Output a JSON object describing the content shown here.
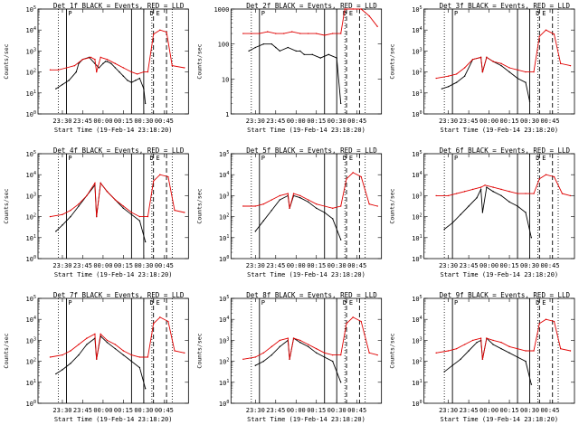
{
  "figure": {
    "x_ticks": [
      "23:30",
      "23:45",
      "00:00",
      "00:15",
      "00:30",
      "00:45"
    ],
    "xlabel": "Start Time (19-Feb-14 23:18:20)",
    "ylabel": "Counts/sec",
    "legend_text": "BLACK = Events, RED = LLD",
    "flags": [
      "P",
      "D",
      "E"
    ],
    "colors": {
      "events": "#000000",
      "lld": "#e00000"
    }
  },
  "chart_data": [
    {
      "panel": "Det 1f",
      "type": "line",
      "ylim_log": [
        0,
        5
      ],
      "y_ticks": [
        "10^0",
        "10^1",
        "10^2",
        "10^3",
        "10^4",
        "10^5"
      ],
      "lines": {
        "solid": [
          23.55,
          0.35,
          0.5
        ],
        "dotted": [
          23.45,
          0.85,
          0.6
        ],
        "dashed": [
          0.62,
          0.78
        ]
      },
      "series": [
        {
          "name": "BLACK = Events",
          "x": [
            23.42,
            23.5,
            23.58,
            23.67,
            23.7,
            23.75,
            23.83,
            23.9,
            23.95,
            24.0,
            24.03,
            24.05,
            24.1,
            24.15,
            24.2,
            24.25,
            24.3,
            24.35,
            24.4,
            24.45,
            24.5,
            24.52
          ],
          "y": [
            1.2,
            1.4,
            1.6,
            2.0,
            2.4,
            2.6,
            2.7,
            2.4,
            2.2,
            2.4,
            2.5,
            2.5,
            2.4,
            2.2,
            2.0,
            1.8,
            1.6,
            1.5,
            1.6,
            1.7,
            1.2,
            0.5
          ]
        },
        {
          "name": "RED = LLD",
          "x": [
            23.35,
            23.45,
            23.55,
            23.65,
            23.75,
            23.85,
            23.9,
            23.92,
            23.97,
            24.05,
            24.15,
            24.25,
            24.35,
            24.42,
            24.5,
            24.55,
            24.62,
            24.7,
            24.78,
            24.85,
            25.0
          ],
          "y": [
            2.1,
            2.1,
            2.2,
            2.3,
            2.6,
            2.7,
            2.6,
            2.0,
            2.7,
            2.6,
            2.4,
            2.2,
            2.0,
            1.9,
            2.0,
            2.0,
            3.8,
            4.0,
            3.9,
            2.3,
            2.2
          ]
        }
      ]
    },
    {
      "panel": "Det 2f",
      "type": "line",
      "ylim_log": [
        0,
        3
      ],
      "y_ticks": [
        "1",
        "10",
        "100",
        "1000"
      ],
      "lines": {
        "solid": [
          23.55,
          0.35,
          0.5
        ],
        "dotted": [
          23.45,
          0.85,
          0.6
        ],
        "dashed": [
          0.62,
          0.78
        ]
      },
      "series": [
        {
          "name": "BLACK = Events",
          "x": [
            23.42,
            23.5,
            23.6,
            23.7,
            23.75,
            23.8,
            23.9,
            24.0,
            24.05,
            24.1,
            24.2,
            24.3,
            24.4,
            24.5,
            24.55
          ],
          "y": [
            1.8,
            1.9,
            2.0,
            2.0,
            1.9,
            1.8,
            1.9,
            1.8,
            1.8,
            1.7,
            1.7,
            1.6,
            1.7,
            1.6,
            0.3
          ]
        },
        {
          "name": "RED = LLD",
          "x": [
            23.35,
            23.45,
            23.55,
            23.65,
            23.75,
            23.85,
            23.95,
            24.05,
            24.15,
            24.25,
            24.35,
            24.45,
            24.55,
            24.6,
            24.7,
            24.8,
            24.9,
            25.0
          ],
          "y": [
            2.3,
            2.3,
            2.3,
            2.35,
            2.3,
            2.3,
            2.35,
            2.3,
            2.3,
            2.3,
            2.25,
            2.3,
            2.3,
            3.0,
            3.1,
            3.0,
            2.8,
            2.5
          ]
        }
      ]
    },
    {
      "panel": "Det 3f",
      "type": "line",
      "ylim_log": [
        0,
        5
      ],
      "y_ticks": [
        "10^0",
        "10^1",
        "10^2",
        "10^3",
        "10^4",
        "10^5"
      ],
      "lines": {
        "solid": [
          23.55,
          0.35,
          0.5
        ],
        "dotted": [
          23.45,
          0.85,
          0.6
        ],
        "dashed": [
          0.62,
          0.78
        ]
      },
      "series": [
        {
          "name": "BLACK = Events",
          "x": [
            23.42,
            23.5,
            23.6,
            23.7,
            23.8,
            23.9,
            23.92,
            23.97,
            24.05,
            24.15,
            24.25,
            24.35,
            24.45,
            24.5
          ],
          "y": [
            1.2,
            1.3,
            1.5,
            1.8,
            2.6,
            2.7,
            2.0,
            2.7,
            2.5,
            2.3,
            2.0,
            1.7,
            1.5,
            0.6
          ]
        },
        {
          "name": "RED = LLD",
          "x": [
            23.35,
            23.5,
            23.6,
            23.7,
            23.8,
            23.9,
            23.92,
            23.97,
            24.05,
            24.15,
            24.25,
            24.35,
            24.45,
            24.55,
            24.62,
            24.7,
            24.8,
            24.88,
            25.0
          ],
          "y": [
            1.7,
            1.8,
            1.9,
            2.2,
            2.6,
            2.7,
            2.0,
            2.7,
            2.5,
            2.4,
            2.2,
            2.1,
            2.0,
            2.0,
            3.7,
            4.0,
            3.8,
            2.4,
            2.3
          ]
        }
      ]
    },
    {
      "panel": "Det 4f",
      "type": "line",
      "ylim_log": [
        0,
        5
      ],
      "y_ticks": [
        "10^0",
        "10^1",
        "10^2",
        "10^3",
        "10^4",
        "10^5"
      ],
      "lines": {
        "solid": [
          23.55,
          0.35,
          0.5
        ],
        "dotted": [
          23.45,
          0.85,
          0.6
        ],
        "dashed": [
          0.62,
          0.78
        ]
      },
      "series": [
        {
          "name": "BLACK = Events",
          "x": [
            23.42,
            23.5,
            23.6,
            23.7,
            23.8,
            23.9,
            23.92,
            23.97,
            24.05,
            24.15,
            24.25,
            24.35,
            24.45,
            24.52
          ],
          "y": [
            1.3,
            1.6,
            2.0,
            2.5,
            3.0,
            3.5,
            2.0,
            3.6,
            3.2,
            2.8,
            2.4,
            2.1,
            1.8,
            0.8
          ]
        },
        {
          "name": "RED = LLD",
          "x": [
            23.35,
            23.5,
            23.6,
            23.7,
            23.8,
            23.9,
            23.92,
            23.97,
            24.05,
            24.15,
            24.25,
            24.35,
            24.45,
            24.55,
            24.62,
            24.7,
            24.8,
            24.88,
            25.0
          ],
          "y": [
            2.0,
            2.1,
            2.3,
            2.6,
            3.0,
            3.6,
            2.0,
            3.6,
            3.2,
            2.8,
            2.5,
            2.2,
            2.0,
            2.0,
            3.7,
            4.0,
            3.9,
            2.3,
            2.2
          ]
        }
      ]
    },
    {
      "panel": "Det 5f",
      "type": "line",
      "ylim_log": [
        0,
        5
      ],
      "y_ticks": [
        "10^0",
        "10^1",
        "10^2",
        "10^3",
        "10^4",
        "10^5"
      ],
      "lines": {
        "solid": [
          23.55,
          0.35,
          0.5
        ],
        "dotted": [
          23.45,
          0.85,
          0.6
        ],
        "dashed": [
          0.62,
          0.78
        ]
      },
      "series": [
        {
          "name": "BLACK = Events",
          "x": [
            23.5,
            23.6,
            23.7,
            23.8,
            23.9,
            23.92,
            23.97,
            24.05,
            24.15,
            24.25,
            24.35,
            24.45,
            24.55
          ],
          "y": [
            1.3,
            1.8,
            2.3,
            2.8,
            3.0,
            2.4,
            3.0,
            2.9,
            2.7,
            2.4,
            2.2,
            1.9,
            0.9
          ]
        },
        {
          "name": "RED = LLD",
          "x": [
            23.35,
            23.5,
            23.6,
            23.7,
            23.8,
            23.9,
            23.92,
            23.97,
            24.05,
            24.15,
            24.25,
            24.35,
            24.45,
            24.55,
            24.62,
            24.7,
            24.8,
            24.9,
            25.0
          ],
          "y": [
            2.5,
            2.5,
            2.6,
            2.8,
            3.0,
            3.1,
            2.4,
            3.1,
            3.0,
            2.8,
            2.6,
            2.5,
            2.4,
            2.5,
            3.8,
            4.1,
            3.9,
            2.6,
            2.5
          ]
        }
      ]
    },
    {
      "panel": "Det 6f",
      "type": "line",
      "ylim_log": [
        0,
        5
      ],
      "y_ticks": [
        "10^0",
        "10^1",
        "10^2",
        "10^3",
        "10^4",
        "10^5"
      ],
      "lines": {
        "solid": [
          23.55,
          0.35,
          0.5
        ],
        "dotted": [
          23.45,
          0.85,
          0.6
        ],
        "dashed": [
          0.62,
          0.78
        ]
      },
      "series": [
        {
          "name": "BLACK = Events",
          "x": [
            23.45,
            23.55,
            23.65,
            23.75,
            23.85,
            23.9,
            23.92,
            23.97,
            24.05,
            24.15,
            24.25,
            24.35,
            24.45,
            24.52
          ],
          "y": [
            1.4,
            1.7,
            2.1,
            2.5,
            2.9,
            3.3,
            2.2,
            3.4,
            3.2,
            3.0,
            2.7,
            2.5,
            2.2,
            1.0
          ]
        },
        {
          "name": "RED = LLD",
          "x": [
            23.35,
            23.5,
            23.6,
            23.7,
            23.8,
            23.9,
            23.95,
            24.05,
            24.15,
            24.25,
            24.35,
            24.45,
            24.55,
            24.62,
            24.7,
            24.8,
            24.9,
            25.0
          ],
          "y": [
            3.0,
            3.0,
            3.1,
            3.2,
            3.3,
            3.4,
            3.5,
            3.4,
            3.3,
            3.2,
            3.1,
            3.1,
            3.1,
            3.8,
            4.0,
            3.9,
            3.1,
            3.0
          ]
        }
      ]
    },
    {
      "panel": "Det 7f",
      "type": "line",
      "ylim_log": [
        0,
        5
      ],
      "y_ticks": [
        "10^0",
        "10^1",
        "10^2",
        "10^3",
        "10^4",
        "10^5"
      ],
      "lines": {
        "solid": [
          23.55,
          0.35,
          0.5
        ],
        "dotted": [
          23.45,
          0.85,
          0.6
        ],
        "dashed": [
          0.62,
          0.78
        ]
      },
      "series": [
        {
          "name": "BLACK = Events",
          "x": [
            23.42,
            23.5,
            23.6,
            23.7,
            23.8,
            23.9,
            23.92,
            23.97,
            24.05,
            24.15,
            24.25,
            24.35,
            24.45,
            24.52
          ],
          "y": [
            1.4,
            1.6,
            1.9,
            2.3,
            2.8,
            3.1,
            2.1,
            3.2,
            2.9,
            2.6,
            2.3,
            2.0,
            1.7,
            0.7
          ]
        },
        {
          "name": "RED = LLD",
          "x": [
            23.35,
            23.5,
            23.6,
            23.7,
            23.8,
            23.9,
            23.92,
            23.97,
            24.05,
            24.15,
            24.25,
            24.35,
            24.45,
            24.55,
            24.62,
            24.7,
            24.8,
            24.88,
            25.0
          ],
          "y": [
            2.2,
            2.3,
            2.5,
            2.8,
            3.1,
            3.3,
            2.1,
            3.3,
            3.0,
            2.8,
            2.5,
            2.3,
            2.2,
            2.2,
            3.8,
            4.1,
            3.9,
            2.5,
            2.4
          ]
        }
      ]
    },
    {
      "panel": "Det 8f",
      "type": "line",
      "ylim_log": [
        0,
        5
      ],
      "y_ticks": [
        "10^0",
        "10^1",
        "10^2",
        "10^3",
        "10^4",
        "10^5"
      ],
      "lines": {
        "solid": [
          23.55,
          0.35,
          0.5
        ],
        "dotted": [
          23.45,
          0.85,
          0.6
        ],
        "dashed": [
          0.62,
          0.78
        ]
      },
      "series": [
        {
          "name": "BLACK = Events",
          "x": [
            23.5,
            23.6,
            23.7,
            23.8,
            23.9,
            23.92,
            23.97,
            24.05,
            24.15,
            24.25,
            24.35,
            24.45,
            24.55
          ],
          "y": [
            1.8,
            2.0,
            2.3,
            2.7,
            3.0,
            2.1,
            3.1,
            2.9,
            2.7,
            2.4,
            2.2,
            2.0,
            1.0
          ]
        },
        {
          "name": "RED = LLD",
          "x": [
            23.35,
            23.5,
            23.6,
            23.7,
            23.8,
            23.9,
            23.92,
            23.97,
            24.05,
            24.15,
            24.25,
            24.35,
            24.45,
            24.55,
            24.62,
            24.7,
            24.8,
            24.9,
            25.0
          ],
          "y": [
            2.1,
            2.2,
            2.4,
            2.7,
            3.0,
            3.1,
            2.1,
            3.1,
            3.0,
            2.8,
            2.6,
            2.4,
            2.3,
            2.3,
            3.8,
            4.1,
            3.9,
            2.4,
            2.3
          ]
        }
      ]
    },
    {
      "panel": "Det 9f",
      "type": "line",
      "ylim_log": [
        0,
        5
      ],
      "y_ticks": [
        "10^0",
        "10^1",
        "10^2",
        "10^3",
        "10^4",
        "10^5"
      ],
      "lines": {
        "solid": [
          23.55,
          0.35,
          0.5
        ],
        "dotted": [
          23.45,
          0.85,
          0.6
        ],
        "dashed": [
          0.62,
          0.78
        ]
      },
      "series": [
        {
          "name": "BLACK = Events",
          "x": [
            23.45,
            23.55,
            23.65,
            23.75,
            23.85,
            23.9,
            23.92,
            23.97,
            24.05,
            24.15,
            24.25,
            24.35,
            24.45,
            24.52
          ],
          "y": [
            1.5,
            1.8,
            2.1,
            2.5,
            2.9,
            3.0,
            2.1,
            3.1,
            2.8,
            2.6,
            2.4,
            2.2,
            2.0,
            0.9
          ]
        },
        {
          "name": "RED = LLD",
          "x": [
            23.35,
            23.5,
            23.6,
            23.7,
            23.8,
            23.9,
            23.92,
            23.97,
            24.05,
            24.15,
            24.25,
            24.35,
            24.45,
            24.55,
            24.62,
            24.7,
            24.8,
            24.88,
            25.0
          ],
          "y": [
            2.4,
            2.5,
            2.6,
            2.8,
            3.0,
            3.1,
            2.1,
            3.1,
            3.0,
            2.9,
            2.7,
            2.6,
            2.5,
            2.5,
            3.8,
            4.0,
            3.9,
            2.6,
            2.5
          ]
        }
      ]
    }
  ]
}
